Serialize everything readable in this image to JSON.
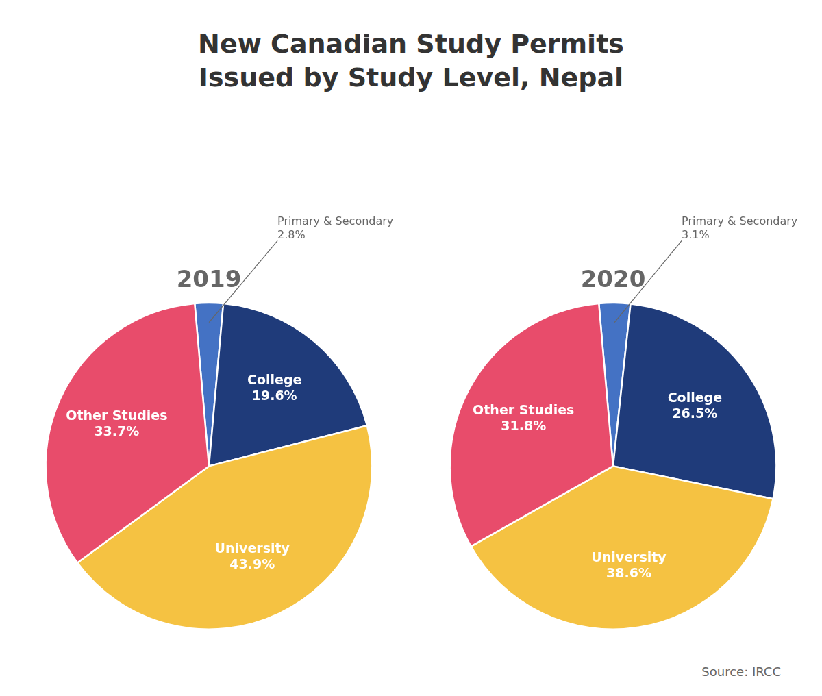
{
  "title": "New Canadian Study Permits",
  "subtitle": "Issued by Study Level, Nepal",
  "annotations": [
    "Source: IRCC"
  ],
  "chart_data": [
    {
      "type": "pie",
      "title": "2019",
      "categories": [
        "Primary & Secondary",
        "College",
        "University",
        "Other Studies"
      ],
      "values": [
        2.8,
        19.6,
        43.9,
        33.7
      ],
      "value_labels": [
        "2.8%",
        "19.6%",
        "43.9%",
        "33.7%"
      ],
      "colors": [
        "#4472c4",
        "#1f3b7a",
        "#f5c242",
        "#e84c6b"
      ],
      "data_labels": true,
      "legend": false
    },
    {
      "type": "pie",
      "title": "2020",
      "categories": [
        "Primary & Secondary",
        "College",
        "University",
        "Other Studies"
      ],
      "values": [
        3.1,
        26.5,
        38.6,
        31.8
      ],
      "value_labels": [
        "3.1%",
        "26.5%",
        "38.6%",
        "31.8%"
      ],
      "colors": [
        "#4472c4",
        "#1f3b7a",
        "#f5c242",
        "#e84c6b"
      ],
      "data_labels": true,
      "legend": false
    }
  ]
}
